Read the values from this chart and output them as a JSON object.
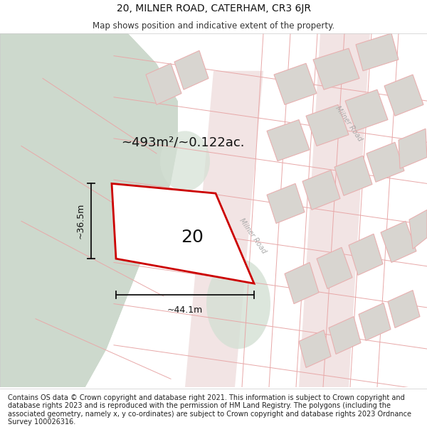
{
  "title": "20, MILNER ROAD, CATERHAM, CR3 6JR",
  "subtitle": "Map shows position and indicative extent of the property.",
  "footer": "Contains OS data © Crown copyright and database right 2021. This information is subject to Crown copyright and database rights 2023 and is reproduced with the permission of HM Land Registry. The polygons (including the associated geometry, namely x, y co-ordinates) are subject to Crown copyright and database rights 2023 Ordnance Survey 100026316.",
  "area_label": "~493m²/~0.122ac.",
  "house_number": "20",
  "dim_width": "~44.1m",
  "dim_height": "~36.5m",
  "road_label": "Milner Road",
  "bg_green": "#cdd9cd",
  "bg_white": "#ffffff",
  "bg_map": "#f2eeea",
  "road_color": "#f2e4e4",
  "plot_outline_color": "#cc0000",
  "plot_fill_color": "#ffffff",
  "building_fill": "#d8d5d0",
  "building_outline": "#e8b0b0",
  "boundary_line_color": "#e8a8a8",
  "dim_line_color": "#111111",
  "text_color": "#111111",
  "green_blob_color": "#d4e0d4",
  "title_fontsize": 10,
  "subtitle_fontsize": 8.5,
  "footer_fontsize": 7.0,
  "area_fontsize": 13,
  "number_fontsize": 18,
  "dim_fontsize": 9
}
